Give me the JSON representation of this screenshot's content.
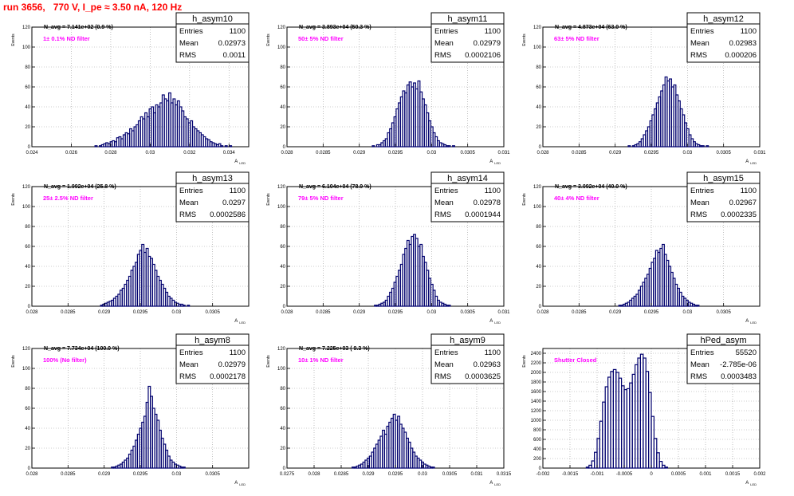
{
  "page": {
    "title": "run 3656,   770 V, I_pe ≈ 3.50 nA, 120 Hz",
    "title_color": "#ff0000",
    "hist_color": "#00006e",
    "note_color": "#ff00ff",
    "grid": true
  },
  "chart_data": [
    {
      "type": "bar",
      "name": "h_asym10",
      "navg": "N_avg = 7.141e+02 (0.9 %)",
      "note": "1± 0.1% ND filter",
      "stats": {
        "Entries": "1100",
        "Mean": "0.02973",
        "RMS": "0.0011"
      },
      "xlabel": "A",
      "xsub": "LED",
      "ylabel": "Events",
      "xlim": [
        0.024,
        0.035
      ],
      "ylim": [
        0,
        120
      ],
      "xticks": [
        0.024,
        0.026,
        0.028,
        0.03,
        0.032,
        0.034
      ],
      "xtick_labels": [
        "0.024",
        "0.026",
        "0.028",
        "0.03",
        "0.032",
        "0.034"
      ],
      "yticks": [
        0,
        20,
        40,
        60,
        80,
        100,
        120
      ],
      "ytick_labels": [
        "0",
        "20",
        "40",
        "60",
        "80",
        "100",
        "120"
      ],
      "x0": 0.0272,
      "bin_width": 0.00011,
      "values": [
        1,
        0,
        1,
        2,
        3,
        4,
        3,
        5,
        6,
        5,
        9,
        10,
        8,
        12,
        14,
        13,
        18,
        16,
        20,
        22,
        26,
        30,
        28,
        34,
        30,
        38,
        40,
        34,
        42,
        40,
        44,
        52,
        48,
        46,
        54,
        44,
        48,
        42,
        46,
        40,
        36,
        30,
        28,
        24,
        26,
        20,
        18,
        16,
        14,
        12,
        10,
        8,
        7,
        5,
        4,
        3,
        2,
        3,
        1,
        0,
        1,
        0,
        1
      ]
    },
    {
      "type": "bar",
      "name": "h_asym11",
      "navg": "N_avg = 3.893e+04 (50.3 %)",
      "note": "50± 5% ND filter",
      "stats": {
        "Entries": "1100",
        "Mean": "0.02979",
        "RMS": "0.0002106"
      },
      "xlabel": "A",
      "xsub": "LED",
      "ylabel": "Events",
      "xlim": [
        0.028,
        0.031
      ],
      "ylim": [
        0,
        120
      ],
      "xticks": [
        0.028,
        0.0285,
        0.029,
        0.0295,
        0.03,
        0.0305,
        0.031
      ],
      "xtick_labels": [
        "0.028",
        "0.0285",
        "0.029",
        "0.0295",
        "0.03",
        "0.0305",
        "0.031"
      ],
      "yticks": [
        0,
        20,
        40,
        60,
        80,
        100,
        120
      ],
      "ytick_labels": [
        "0",
        "20",
        "40",
        "60",
        "80",
        "100",
        "120"
      ],
      "x0": 0.02918,
      "bin_width": 3e-05,
      "values": [
        1,
        0,
        2,
        2,
        4,
        6,
        8,
        14,
        18,
        24,
        30,
        38,
        44,
        50,
        56,
        54,
        62,
        65,
        60,
        64,
        58,
        66,
        55,
        48,
        42,
        34,
        26,
        20,
        14,
        10,
        6,
        4,
        3,
        2,
        1,
        1,
        0,
        1
      ]
    },
    {
      "type": "bar",
      "name": "h_asym12",
      "navg": "N_avg = 4.873e+04 (63.0 %)",
      "note": "63± 5% ND filter",
      "stats": {
        "Entries": "1100",
        "Mean": "0.02983",
        "RMS": "0.000206"
      },
      "xlabel": "A",
      "xsub": "LED",
      "ylabel": "Events",
      "xlim": [
        0.028,
        0.031
      ],
      "ylim": [
        0,
        120
      ],
      "xticks": [
        0.028,
        0.0285,
        0.029,
        0.0295,
        0.03,
        0.0305,
        0.031
      ],
      "xtick_labels": [
        "0.028",
        "0.0285",
        "0.029",
        "0.0295",
        "0.03",
        "0.0305",
        "0.031"
      ],
      "yticks": [
        0,
        20,
        40,
        60,
        80,
        100,
        120
      ],
      "ytick_labels": [
        "0",
        "20",
        "40",
        "60",
        "80",
        "100",
        "120"
      ],
      "x0": 0.02918,
      "bin_width": 3e-05,
      "values": [
        1,
        0,
        1,
        2,
        3,
        5,
        8,
        12,
        16,
        20,
        26,
        32,
        38,
        44,
        50,
        56,
        62,
        70,
        66,
        68,
        60,
        62,
        52,
        46,
        38,
        32,
        24,
        18,
        12,
        8,
        5,
        3,
        2,
        1,
        1,
        0,
        1
      ]
    },
    {
      "type": "bar",
      "name": "h_asym13",
      "navg": "N_avg = 1.992e+04 (25.8 %)",
      "note": "25± 2.5% ND filter",
      "stats": {
        "Entries": "1100",
        "Mean": "0.0297",
        "RMS": "0.0002586"
      },
      "xlabel": "A",
      "xsub": "LED",
      "ylabel": "Events",
      "xlim": [
        0.028,
        0.031
      ],
      "ylim": [
        0,
        120
      ],
      "xticks": [
        0.028,
        0.0285,
        0.029,
        0.0295,
        0.03,
        0.0305
      ],
      "xtick_labels": [
        "0.028",
        "0.0285",
        "0.029",
        "0.0295",
        "0.03",
        "0.0305"
      ],
      "yticks": [
        0,
        20,
        40,
        60,
        80,
        100,
        120
      ],
      "ytick_labels": [
        "0",
        "20",
        "40",
        "60",
        "80",
        "100",
        "120"
      ],
      "x0": 0.02895,
      "bin_width": 3e-05,
      "values": [
        1,
        2,
        3,
        4,
        5,
        6,
        8,
        10,
        12,
        16,
        18,
        22,
        26,
        30,
        36,
        40,
        44,
        52,
        56,
        62,
        54,
        58,
        50,
        48,
        42,
        36,
        30,
        26,
        22,
        18,
        14,
        10,
        8,
        6,
        4,
        3,
        2,
        2,
        1,
        0,
        1
      ]
    },
    {
      "type": "bar",
      "name": "h_asym14",
      "navg": "N_avg = 6.104e+04 (78.9 %)",
      "note": "79± 5% ND filter",
      "stats": {
        "Entries": "1100",
        "Mean": "0.02978",
        "RMS": "0.0001944"
      },
      "xlabel": "A",
      "xsub": "LED",
      "ylabel": "Events",
      "xlim": [
        0.028,
        0.031
      ],
      "ylim": [
        0,
        120
      ],
      "xticks": [
        0.028,
        0.0285,
        0.029,
        0.0295,
        0.03,
        0.0305,
        0.031
      ],
      "xtick_labels": [
        "0.028",
        "0.0285",
        "0.029",
        "0.0295",
        "0.03",
        "0.0305",
        "0.031"
      ],
      "yticks": [
        0,
        20,
        40,
        60,
        80,
        100,
        120
      ],
      "ytick_labels": [
        "0",
        "20",
        "40",
        "60",
        "80",
        "100",
        "120"
      ],
      "x0": 0.02921,
      "bin_width": 3e-05,
      "values": [
        1,
        1,
        2,
        3,
        4,
        6,
        10,
        14,
        18,
        24,
        30,
        36,
        42,
        52,
        58,
        66,
        62,
        70,
        72,
        68,
        60,
        62,
        50,
        44,
        36,
        28,
        22,
        16,
        10,
        6,
        4,
        3,
        2,
        1,
        1
      ]
    },
    {
      "type": "bar",
      "name": "h_asym15",
      "navg": "N_avg = 3.092e+04 (40.0 %)",
      "note": "40± 4% ND filter",
      "stats": {
        "Entries": "1100",
        "Mean": "0.02967",
        "RMS": "0.0002335"
      },
      "xlabel": "A",
      "xsub": "LED",
      "ylabel": "Events",
      "xlim": [
        0.028,
        0.031
      ],
      "ylim": [
        0,
        120
      ],
      "xticks": [
        0.028,
        0.0285,
        0.029,
        0.0295,
        0.03,
        0.0305
      ],
      "xtick_labels": [
        "0.028",
        "0.0285",
        "0.029",
        "0.0295",
        "0.03",
        "0.0305"
      ],
      "yticks": [
        0,
        20,
        40,
        60,
        80,
        100,
        120
      ],
      "ytick_labels": [
        "0",
        "20",
        "40",
        "60",
        "80",
        "100",
        "120"
      ],
      "x0": 0.02905,
      "bin_width": 3e-05,
      "values": [
        1,
        1,
        2,
        3,
        4,
        6,
        8,
        10,
        12,
        16,
        20,
        24,
        28,
        32,
        38,
        44,
        48,
        56,
        54,
        58,
        62,
        52,
        46,
        40,
        34,
        28,
        22,
        18,
        14,
        10,
        8,
        6,
        4,
        3,
        2,
        1,
        1
      ]
    },
    {
      "type": "bar",
      "name": "h_asym8",
      "navg": "N_avg = 7.734e+04 (100.0 %)",
      "note": "100% (No filter)",
      "stats": {
        "Entries": "1100",
        "Mean": "0.02979",
        "RMS": "0.0002178"
      },
      "xlabel": "A",
      "xsub": "LED",
      "ylabel": "Events",
      "xlim": [
        0.028,
        0.031
      ],
      "ylim": [
        0,
        120
      ],
      "xticks": [
        0.028,
        0.0285,
        0.029,
        0.0295,
        0.03,
        0.0305
      ],
      "xtick_labels": [
        "0.028",
        "0.0285",
        "0.029",
        "0.0295",
        "0.03",
        "0.0305"
      ],
      "yticks": [
        0,
        20,
        40,
        60,
        80,
        100,
        120
      ],
      "ytick_labels": [
        "0",
        "20",
        "40",
        "60",
        "80",
        "100",
        "120"
      ],
      "x0": 0.0291,
      "bin_width": 3e-05,
      "values": [
        1,
        1,
        2,
        3,
        4,
        6,
        8,
        10,
        14,
        18,
        22,
        28,
        34,
        40,
        46,
        52,
        66,
        82,
        72,
        60,
        54,
        48,
        38,
        30,
        24,
        18,
        12,
        8,
        6,
        4,
        3,
        2,
        1,
        1
      ]
    },
    {
      "type": "bar",
      "name": "h_asym9",
      "navg": "N_avg = 7.225e+03 ( 9.3 %)",
      "note": "10± 1% ND filter",
      "stats": {
        "Entries": "1100",
        "Mean": "0.02963",
        "RMS": "0.0003625"
      },
      "xlabel": "A",
      "xsub": "LED",
      "ylabel": "Events",
      "xlim": [
        0.0275,
        0.0315
      ],
      "ylim": [
        0,
        120
      ],
      "xticks": [
        0.0275,
        0.028,
        0.0285,
        0.029,
        0.0295,
        0.03,
        0.0305,
        0.031,
        0.0315
      ],
      "xtick_labels": [
        "0.0275",
        "0.028",
        "0.0285",
        "0.029",
        "0.0295",
        "0.03",
        "0.0305",
        "0.031",
        "0.0315"
      ],
      "yticks": [
        0,
        20,
        40,
        60,
        80,
        100,
        120
      ],
      "ytick_labels": [
        "0",
        "20",
        "40",
        "60",
        "80",
        "100",
        "120"
      ],
      "x0": 0.0287,
      "bin_width": 4e-05,
      "values": [
        1,
        1,
        2,
        3,
        4,
        6,
        8,
        10,
        12,
        16,
        20,
        24,
        28,
        32,
        38,
        34,
        42,
        46,
        50,
        54,
        48,
        52,
        44,
        40,
        36,
        30,
        26,
        20,
        16,
        12,
        10,
        8,
        6,
        4,
        3,
        2,
        1,
        1
      ]
    },
    {
      "type": "bar",
      "name": "hPed_asym",
      "navg": "",
      "note": "Shutter Closed",
      "stats": {
        "Entries": "55520",
        "Mean": "-2.785e-06",
        "RMS": "0.0003483"
      },
      "xlabel": "A",
      "xsub": "LED",
      "ylabel": "Events",
      "xlim": [
        -0.002,
        0.002
      ],
      "ylim": [
        0,
        2500
      ],
      "xticks": [
        -0.002,
        -0.0015,
        -0.001,
        -0.0005,
        0,
        0.0005,
        0.001,
        0.0015,
        0.002
      ],
      "xtick_labels": [
        "-0.002",
        "-0.0015",
        "-0.001",
        "-0.0005",
        "0",
        "0.0005",
        "0.001",
        "0.0015",
        "0.002"
      ],
      "yticks": [
        0,
        200,
        400,
        600,
        800,
        1000,
        1200,
        1400,
        1600,
        1800,
        2000,
        2200,
        2400
      ],
      "ytick_labels": [
        "0",
        "200",
        "400",
        "600",
        "800",
        "1000",
        "1200",
        "1400",
        "1600",
        "1800",
        "2000",
        "2200",
        "2400"
      ],
      "x0": -0.0012,
      "bin_width": 5e-05,
      "values": [
        20,
        60,
        150,
        330,
        620,
        980,
        1380,
        1700,
        1900,
        2020,
        2060,
        2000,
        1880,
        1720,
        1640,
        1660,
        1780,
        1960,
        2160,
        2300,
        2380,
        2300,
        2020,
        1580,
        1080,
        620,
        320,
        140,
        60,
        20
      ]
    }
  ]
}
